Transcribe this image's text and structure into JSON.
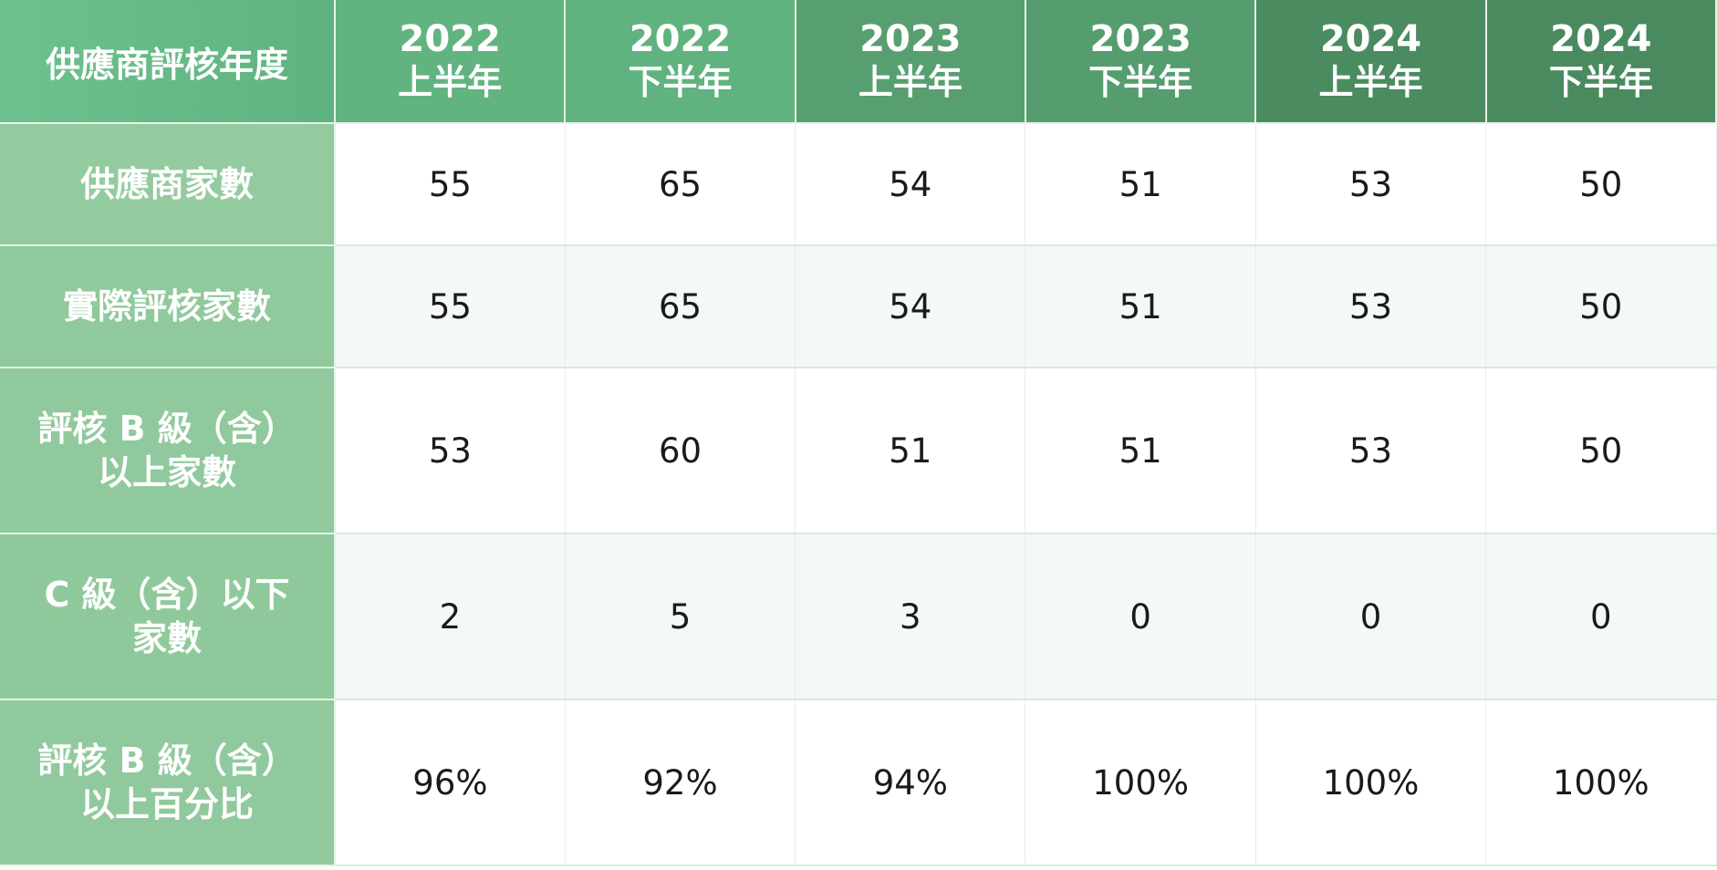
{
  "chart_data": {
    "type": "table",
    "corner_header": "供應商評核年度",
    "columns": [
      {
        "year": "2022",
        "half": "上半年"
      },
      {
        "year": "2022",
        "half": "下半年"
      },
      {
        "year": "2023",
        "half": "上半年"
      },
      {
        "year": "2023",
        "half": "下半年"
      },
      {
        "year": "2024",
        "half": "上半年"
      },
      {
        "year": "2024",
        "half": "下半年"
      }
    ],
    "rows": [
      {
        "label": "供應商家數",
        "values": [
          "55",
          "65",
          "54",
          "51",
          "53",
          "50"
        ]
      },
      {
        "label": "實際評核家數",
        "values": [
          "55",
          "65",
          "54",
          "51",
          "53",
          "50"
        ]
      },
      {
        "label_lines": [
          "評核 B 級（含）",
          "以上家數"
        ],
        "values": [
          "53",
          "60",
          "51",
          "51",
          "53",
          "50"
        ]
      },
      {
        "label_lines": [
          "C 級（含）以下",
          "家數"
        ],
        "values": [
          "2",
          "5",
          "3",
          "0",
          "0",
          "0"
        ]
      },
      {
        "label_lines": [
          "評核 B 級（含）",
          "以上百分比"
        ],
        "values": [
          "96%",
          "92%",
          "94%",
          "100%",
          "100%",
          "100%"
        ]
      }
    ]
  },
  "colors": {
    "header_col": [
      "#61b480",
      "#60b27e",
      "#579f70",
      "#559d6e",
      "#4a8b60",
      "#4a8a5f"
    ],
    "row_header": [
      "#93cb9f",
      "#8fc99c",
      "#90c99d",
      "#8fc99b",
      "#90c99d"
    ]
  }
}
